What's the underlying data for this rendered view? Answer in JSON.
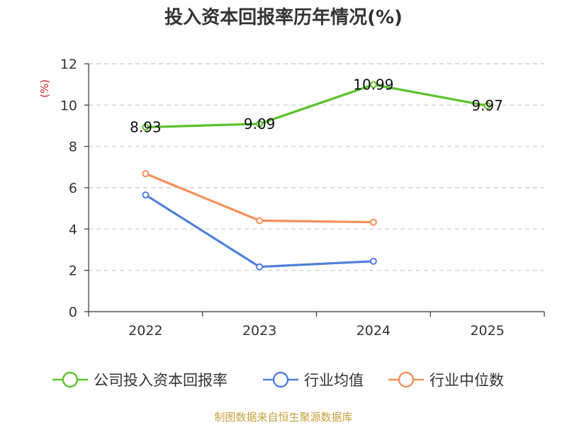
{
  "chart_data": {
    "type": "line",
    "title": "投入资本回报率历年情况(%)",
    "ylabel": "(%)",
    "xlabel": "",
    "categories": [
      "2022",
      "2023",
      "2024",
      "2025"
    ],
    "ylim": [
      0,
      12
    ],
    "yticks": [
      0,
      2,
      4,
      6,
      8,
      10,
      12
    ],
    "grid": true,
    "legend_position": "bottom",
    "series": [
      {
        "name": "公司投入资本回报率",
        "color": "#5cc12a",
        "values": [
          8.93,
          9.09,
          10.99,
          9.97
        ],
        "labels": [
          "8.93",
          "9.09",
          "10.99",
          "9.97"
        ]
      },
      {
        "name": "行业均值",
        "color": "#4f7fdc",
        "values": [
          5.65,
          2.17,
          2.44,
          null
        ],
        "labels": []
      },
      {
        "name": "行业中位数",
        "color": "#f5905a",
        "values": [
          6.68,
          4.41,
          4.33,
          null
        ],
        "labels": []
      }
    ]
  },
  "footer": {
    "source": "制图数据来自恒生聚源数据库"
  }
}
